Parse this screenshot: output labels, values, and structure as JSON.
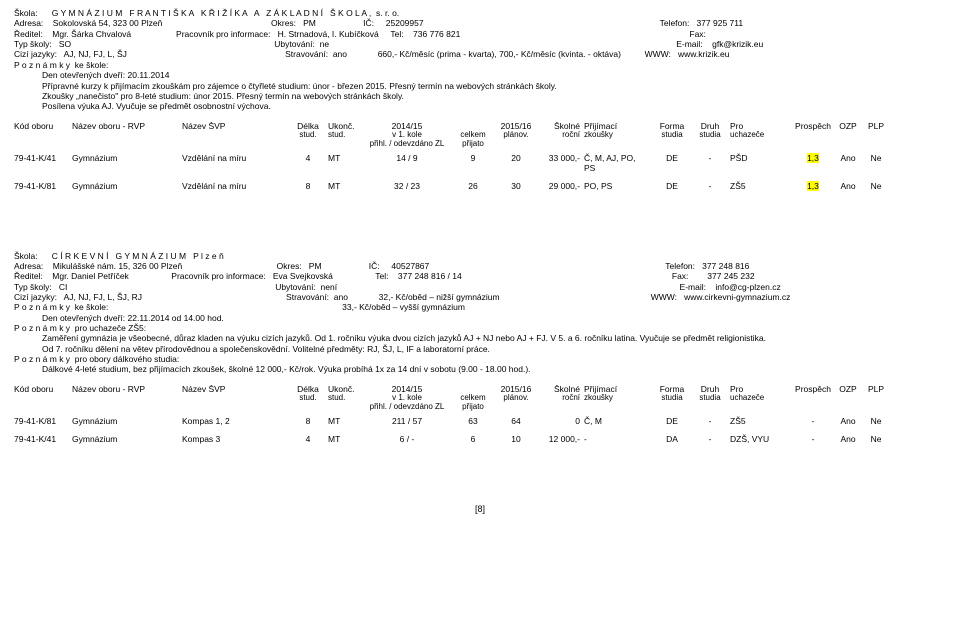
{
  "page_number": "[8]",
  "header_labels": {
    "kod": "Kód oboru",
    "rvp": "Název oboru - RVP",
    "svp": "Název ŠVP",
    "delka": "Délka",
    "ukonc": "Ukonč.",
    "y1415": "2014/15",
    "celkem": "",
    "y1516": "2015/16",
    "rocni": "Školné",
    "zkous": "Přijímací",
    "forma": "Forma",
    "druh": "Druh",
    "pro": "Pro",
    "prosp": "Prospěch",
    "ozp": "OZP",
    "plp": "PLP"
  },
  "sub_labels": {
    "delka": "stud.",
    "ukonc": "stud.",
    "y1415a": "v 1. kole",
    "y1415b": "přihl. / odevzdáno ZL",
    "celkem_a": "celkem",
    "celkem_b": "přijato",
    "y1516": "plánov.",
    "rocni": "roční",
    "zkous": "zkoušky",
    "forma": "studia",
    "druh": "studia",
    "pro": "uchazeče"
  },
  "schools": [
    {
      "title": "G Y M N Á Z I U M   F R A N T I Š K A   K Ř I Ž Í K A   A   Z Á K L A D N Í   Š K O L A ,  s. r. o.",
      "info_lines": [
        "Adresa:    Sokolovská 54, 323 00 Plzeň                                              Okres:   PM                    IČ:     25209957                                                                                                    Telefon:   377 925 711",
        "Ředitel:    Mgr. Šárka Chvalová                   Pracovník pro informace:   H. Strnadová, I. Kubíčková     Tel:    736 776 821                                                                                                 Fax:",
        "Typ školy:   SO                                                                                      Ubytování:  ne                                                                                                                                                   E-mail:    gfk@krizik.eu",
        "Cizí jazyky:   AJ, NJ, FJ, L, ŠJ                                                                   Stravování:  ano             660,- Kč/měsíc (prima - kvarta), 700,- Kč/měsíc (kvinta. - oktáva)          WWW:   www.krizik.eu",
        "P o z n á m k y  ke škole:"
      ],
      "notes": [
        "Den otevřených dveří: 20.11.2014",
        "Přípravné kurzy k přijímacím zkouškám pro zájemce o čtyřleté studium: únor - březen 2015. Přesný termín na webových stránkách školy.",
        "Zkoušky „nanečisto\" pro 8-leté studium: únor 2015. Přesný termín na webových stránkách školy.",
        "Posílena výuka AJ. Vyučuje se předmět osobnostní výchova."
      ],
      "rows": [
        {
          "kod": "79-41-K/41",
          "rvp": "Gymnázium",
          "svp": "Vzdělání na míru",
          "delka": "4",
          "ukonc": "MT",
          "y1415": "14 / 9",
          "celkem": "9",
          "y1516": "20",
          "rocni": "33 000,-",
          "zkous": "Č, M, AJ, PO,\nPS",
          "forma": "DE",
          "druh": "-",
          "pro": "PŠD",
          "prosp": "1,3",
          "prosp_hl": true,
          "ozp": "Ano",
          "plp": "Ne"
        },
        {
          "kod": "79-41-K/81",
          "rvp": "Gymnázium",
          "svp": "Vzdělání na míru",
          "delka": "8",
          "ukonc": "MT",
          "y1415": "32 / 23",
          "celkem": "26",
          "y1516": "30",
          "rocni": "29 000,-",
          "zkous": "PO, PS",
          "forma": "DE",
          "druh": "-",
          "pro": "ZŠ5",
          "prosp": "1,3",
          "prosp_hl": true,
          "ozp": "Ano",
          "plp": "Ne"
        }
      ]
    },
    {
      "title": "C Í R K E V N Í   G Y M N Á Z I U M   P l z e ň",
      "info_lines": [
        "Adresa:    Mikulášské nám. 15, 326 00 Plzeň                                        Okres:   PM                    IČ:     40527867                                                                                                    Telefon:   377 248 816",
        "Ředitel:    Mgr. Daniel Petříček                  Pracovník pro informace:   Eva Svejkovská                  Tel:    377 248 816 / 14                                                                                         Fax:        377 245 232",
        "Typ školy:   CI                                                                                        Ubytování:  není                                                                                                                                                 E-mail:    info@cg-plzen.cz",
        "Cizí jazyky:   AJ, NJ, FJ, L, ŠJ, RJ                                                             Stravování:  ano             32,- Kč/oběd – nižší gymnázium                                                                WWW:   www.cirkevni-gymnazium.cz",
        "P o z n á m k y  ke škole:                                                                                                   33,- Kč/oběd – vyšší gymnázium"
      ],
      "notes": [
        "Den otevřených dveří: 22.11.2014 od 14.00 hod."
      ],
      "extra_blocks": [
        {
          "title": "P o z n á m k y  pro uchazeče ZŠ5:",
          "lines": [
            "Zaměření gymnázia je všeobecné, důraz kladen na výuku cizích jazyků. Od 1. ročníku výuka dvou cizích jazyků AJ + NJ nebo AJ + FJ. V 5. a 6. ročníku latina. Vyučuje se předmět religionistika.",
            "Od 7. ročníku dělení na větev přírodovědnou a společenskovědní. Volitelné předměty: RJ, ŠJ, L, IF a laboratorní práce."
          ]
        },
        {
          "title": "P o z n á m k y  pro obory dálkového studia:",
          "lines": [
            "Dálkové 4-leté studium, bez přijímacích zkoušek, školné 12 000,- Kč/rok. Výuka probíhá 1x za 14 dní v sobotu (9.00 - 18.00 hod.)."
          ]
        }
      ],
      "rows": [
        {
          "kod": "79-41-K/81",
          "rvp": "Gymnázium",
          "svp": "Kompas 1, 2",
          "delka": "8",
          "ukonc": "MT",
          "y1415": "211 / 57",
          "celkem": "63",
          "y1516": "64",
          "rocni": "0",
          "zkous": "Č, M",
          "forma": "DE",
          "druh": "-",
          "pro": "ZŠ5",
          "prosp": "-",
          "prosp_hl": false,
          "ozp": "Ano",
          "plp": "Ne"
        },
        {
          "kod": "79-41-K/41",
          "rvp": "Gymnázium",
          "svp": "Kompas 3",
          "delka": "4",
          "ukonc": "MT",
          "y1415": "6 / -",
          "celkem": "6",
          "y1516": "10",
          "rocni": "12 000,-",
          "zkous": "-",
          "forma": "DA",
          "druh": "-",
          "pro": "DZŠ, VYU",
          "prosp": "-",
          "prosp_hl": false,
          "ozp": "Ano",
          "plp": "Ne"
        }
      ]
    }
  ]
}
